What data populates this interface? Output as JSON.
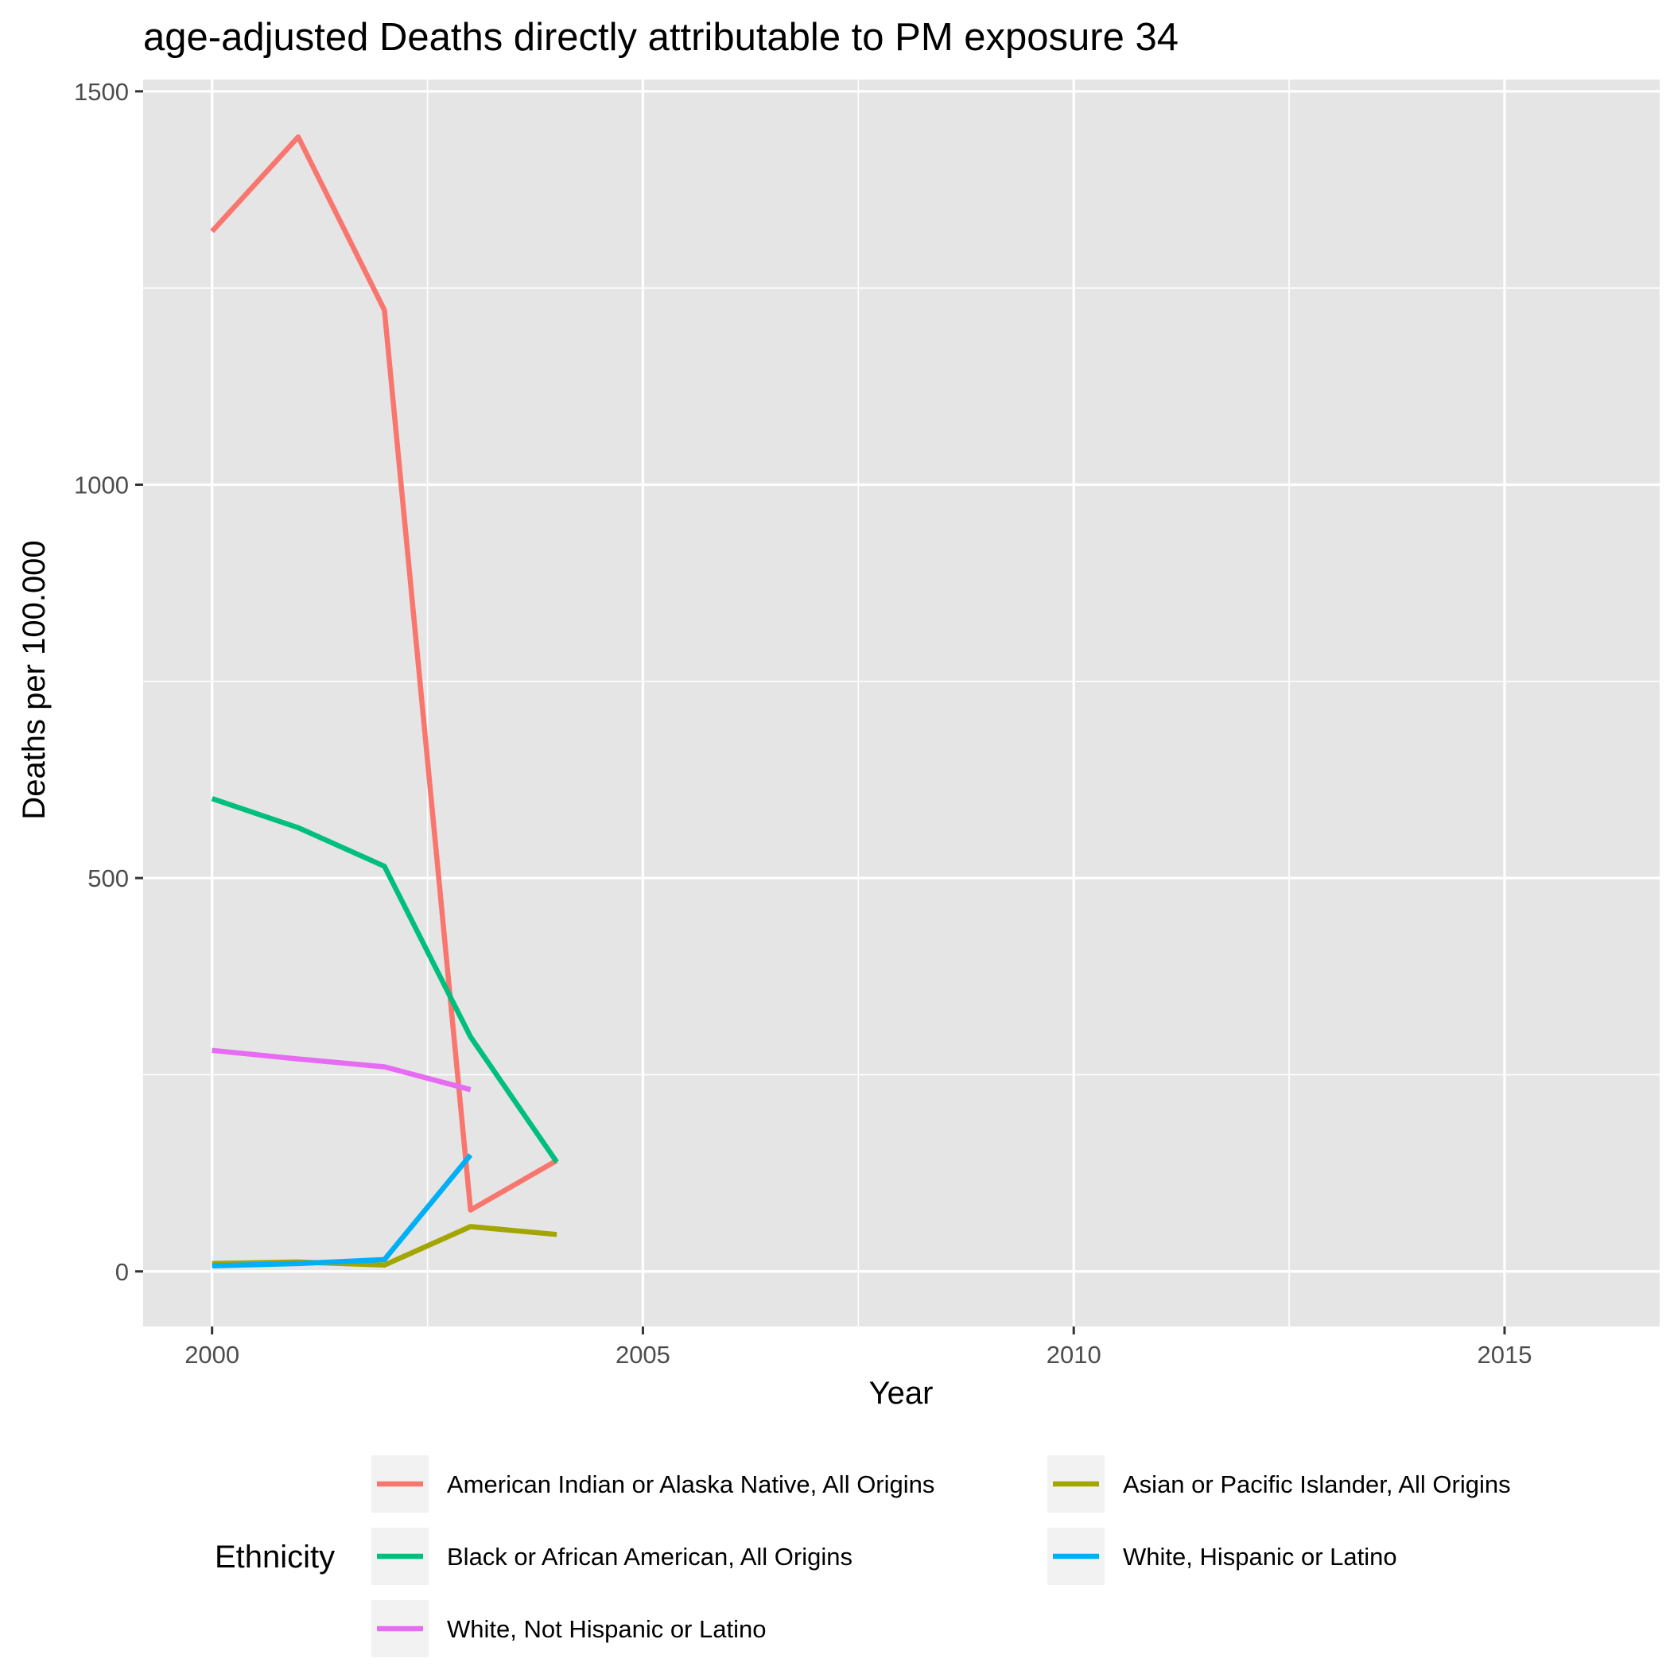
{
  "chart_data": {
    "type": "line",
    "title": "age-adjusted Deaths directly attributable to PM exposure 34",
    "xlabel": "Year",
    "ylabel": "Deaths per 100.000",
    "xlim": [
      1999.2,
      2016.8
    ],
    "ylim": [
      -70,
      1515
    ],
    "x_ticks": [
      2000,
      2005,
      2010,
      2015
    ],
    "y_ticks": [
      0,
      500,
      1000,
      1500
    ],
    "x_minor": [
      2002.5,
      2007.5,
      2012.5
    ],
    "y_minor": [
      250,
      750,
      1250
    ],
    "grid": true,
    "background": "#e5e5e5",
    "legend": {
      "title": "Ethnicity",
      "position": "bottom"
    },
    "series": [
      {
        "name": "American Indian or Alaska Native, All Origins",
        "color": "#f8766d",
        "x": [
          2000,
          2001,
          2002,
          2003,
          2004
        ],
        "y": [
          1322,
          1442,
          1222,
          78,
          141
        ]
      },
      {
        "name": "Asian or Pacific Islander, All Origins",
        "color": "#a3a500",
        "x": [
          2000,
          2001,
          2002,
          2003,
          2004
        ],
        "y": [
          10,
          12,
          8,
          57,
          47
        ]
      },
      {
        "name": "Black or African American, All Origins",
        "color": "#00bf7d",
        "x": [
          2000,
          2001,
          2002,
          2003,
          2004
        ],
        "y": [
          601,
          564,
          515,
          298,
          139
        ]
      },
      {
        "name": "White, Hispanic or Latino",
        "color": "#00b0f6",
        "x": [
          2000,
          2001,
          2002,
          2003
        ],
        "y": [
          7,
          10,
          15,
          148
        ]
      },
      {
        "name": "White, Not Hispanic or Latino",
        "color": "#e76bf3",
        "x": [
          2000,
          2001,
          2002,
          2003
        ],
        "y": [
          281,
          270,
          260,
          231
        ]
      }
    ]
  }
}
